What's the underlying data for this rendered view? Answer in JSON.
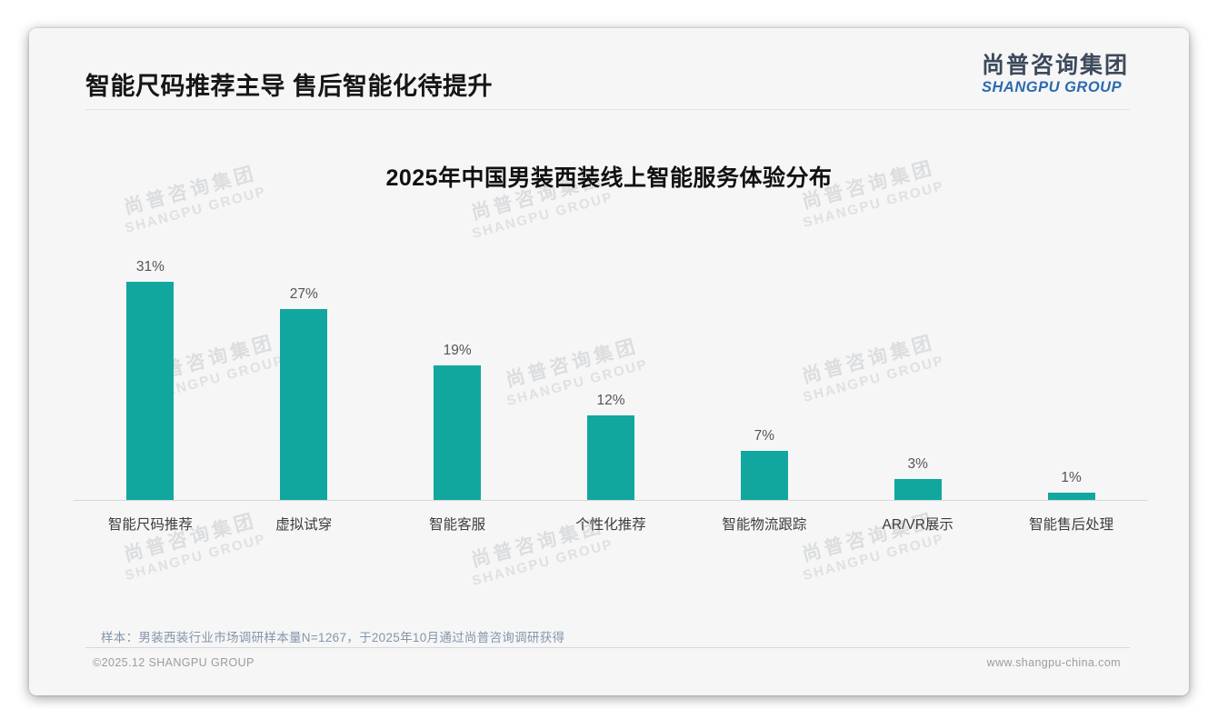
{
  "header": {
    "title": "智能尺码推荐主导 售后智能化待提升",
    "logo_cn": "尚普咨询集团",
    "logo_en": "SHANGPU GROUP"
  },
  "watermark": {
    "line1": "尚普咨询集团",
    "line2": "SHANGPU GROUP"
  },
  "chart_data": {
    "type": "bar",
    "title": "2025年中国男装西装线上智能服务体验分布",
    "categories": [
      "智能尺码推荐",
      "虚拟试穿",
      "智能客服",
      "个性化推荐",
      "智能物流跟踪",
      "AR/VR展示",
      "智能售后处理"
    ],
    "values": [
      31,
      27,
      19,
      12,
      7,
      3,
      1
    ],
    "unit": "%",
    "data_labels": [
      "31%",
      "27%",
      "19%",
      "12%",
      "7%",
      "3%",
      "1%"
    ],
    "bar_color": "#11A79F",
    "ylim": [
      0,
      33
    ],
    "grid": false,
    "legend": "none",
    "xlabel": "",
    "ylabel": ""
  },
  "footer": {
    "source_note": "样本：男装西装行业市场调研样本量N=1267，于2025年10月通过尚普咨询调研获得",
    "copyright": "©2025.12 SHANGPU GROUP",
    "website": "www.shangpu-china.com"
  },
  "colors": {
    "bar": "#11A79F",
    "logo_dark": "#3D4A5C",
    "logo_blue": "#2A6BAD",
    "note_text": "#8496A9"
  }
}
